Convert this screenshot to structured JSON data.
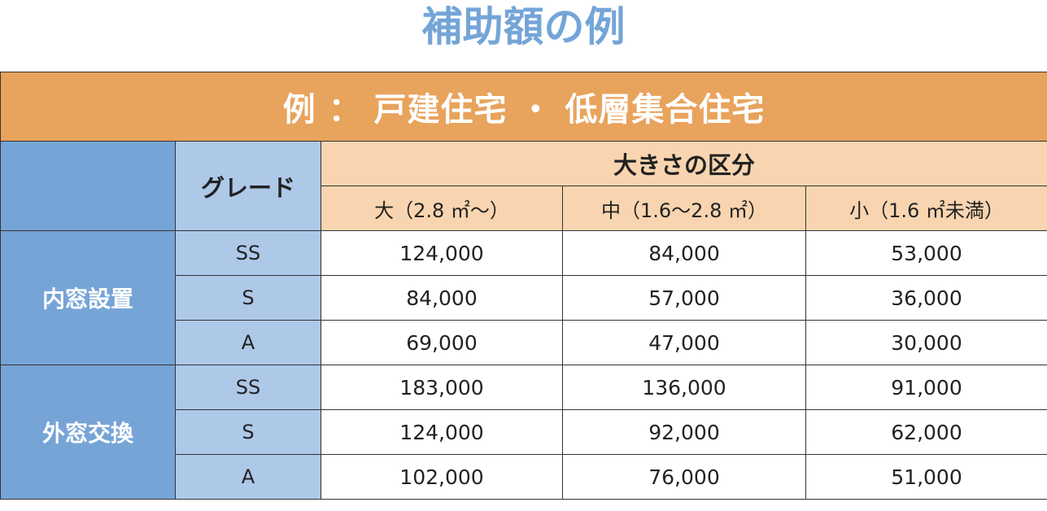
{
  "title": "補助額の例",
  "banner": "例 ： 戸建住宅 ・ 低層集合住宅",
  "header": {
    "grade": "グレード",
    "size_group": "大きさの区分",
    "sizes": [
      "大（2.8 ㎡〜）",
      "中（1.6〜2.8 ㎡）",
      "小（1.6 ㎡未満）"
    ]
  },
  "groups": [
    {
      "label": "内窓設置",
      "rows": [
        {
          "grade": "SS",
          "values": [
            "124,000",
            "84,000",
            "53,000"
          ]
        },
        {
          "grade": "S",
          "values": [
            "84,000",
            "57,000",
            "36,000"
          ]
        },
        {
          "grade": "A",
          "values": [
            "69,000",
            "47,000",
            "30,000"
          ]
        }
      ]
    },
    {
      "label": "外窓交換",
      "rows": [
        {
          "grade": "SS",
          "values": [
            "183,000",
            "136,000",
            "91,000"
          ]
        },
        {
          "grade": "S",
          "values": [
            "124,000",
            "92,000",
            "62,000"
          ]
        },
        {
          "grade": "A",
          "values": [
            "102,000",
            "76,000",
            "51,000"
          ]
        }
      ]
    }
  ],
  "colors": {
    "title": "#74a5d8",
    "banner": "#e8a35c",
    "category": "#76a4d6",
    "grade": "#aec8e8",
    "size_header": "#f8d5b0"
  }
}
